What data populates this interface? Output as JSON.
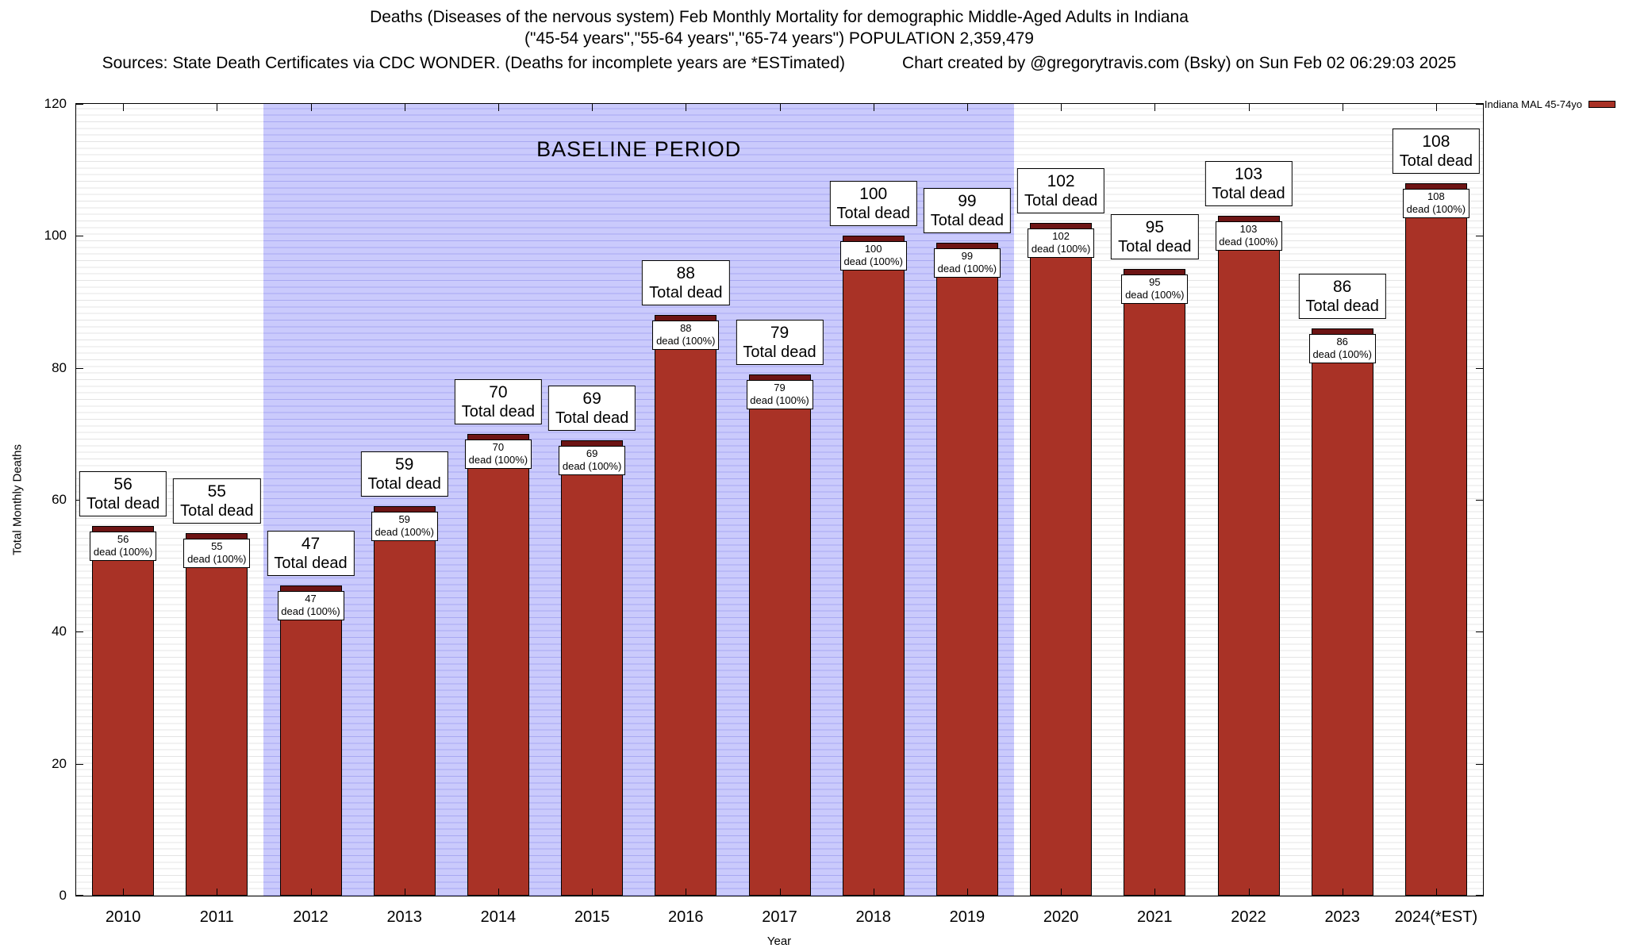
{
  "title": {
    "line1": "Deaths (Diseases of the nervous system) Feb Monthly Mortality for demographic Middle-Aged Adults in Indiana",
    "line2": "(\"45-54 years\",\"55-64 years\",\"65-74 years\") POPULATION 2,359,479",
    "line3_left": "Sources: State Death Certificates via CDC WONDER. (Deaths for incomplete years are *ESTimated)",
    "line3_right": "Chart created by @gregorytravis.com (Bsky) on Sun Feb 02 06:29:03 2025"
  },
  "legend": {
    "label": "Indiana MAL 45-74yo",
    "color": "#a93226"
  },
  "chart_data": {
    "type": "bar",
    "title": "Deaths (Diseases of the nervous system) Feb Monthly Mortality for demographic Middle-Aged Adults in Indiana",
    "subtitle": "(\"45-54 years\",\"55-64 years\",\"65-74 years\") POPULATION 2,359,479",
    "categories": [
      "2010",
      "2011",
      "2012",
      "2013",
      "2014",
      "2015",
      "2016",
      "2017",
      "2018",
      "2019",
      "2020",
      "2021",
      "2022",
      "2023",
      "2024(*EST)"
    ],
    "values": [
      56,
      55,
      47,
      59,
      70,
      69,
      88,
      79,
      100,
      99,
      102,
      95,
      103,
      86,
      108
    ],
    "bar_label_top": "Total dead",
    "bar_label_inner": "dead (100%)",
    "xlabel": "Year",
    "ylabel": "Total Monthly Deaths",
    "ylim": [
      0,
      120
    ],
    "yticks": [
      0,
      20,
      40,
      60,
      80,
      100,
      120
    ],
    "grid": "on",
    "legend_position": "top-right",
    "baseline": {
      "label": "BASELINE PERIOD",
      "start_category": "2012",
      "end_category": "2019"
    },
    "colors": {
      "bar": "#a93226",
      "bar_cap": "#6d1414",
      "baseline_fill": "#cacafc"
    }
  }
}
